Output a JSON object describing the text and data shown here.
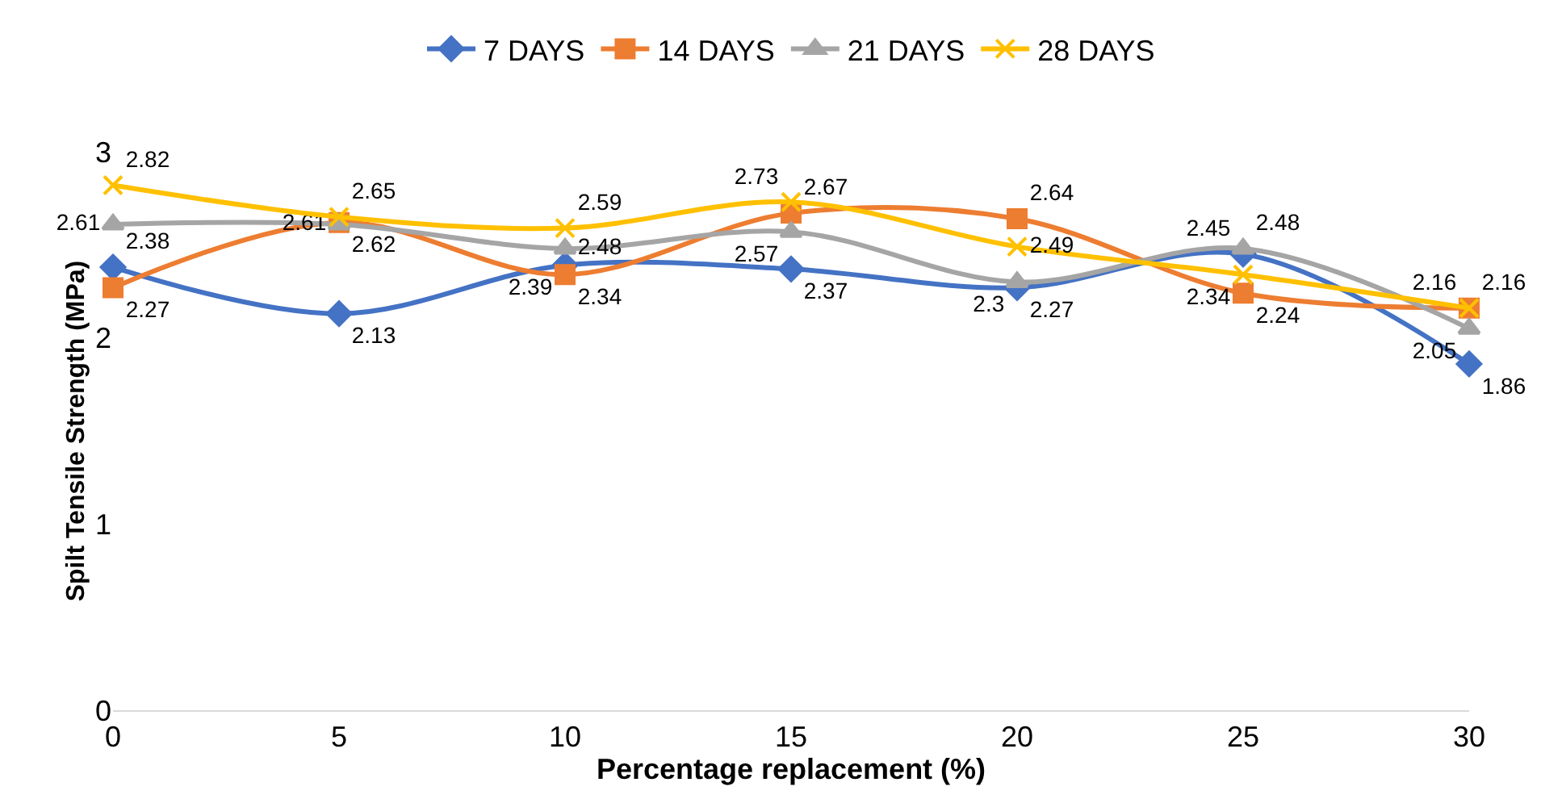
{
  "chart_data": {
    "type": "line",
    "xlabel": "Percentage replacement (%)",
    "ylabel": "Spilt Tensile Strength (MPa)",
    "x": [
      0,
      5,
      10,
      15,
      20,
      25,
      30
    ],
    "series": [
      {
        "name": "7 DAYS",
        "color": "#4472c4",
        "marker": "diamond",
        "values": [
          2.38,
          2.13,
          2.39,
          2.37,
          2.27,
          2.45,
          1.86
        ]
      },
      {
        "name": "14 DAYS",
        "color": "#ed7d31",
        "marker": "square",
        "values": [
          2.27,
          2.62,
          2.34,
          2.67,
          2.64,
          2.24,
          2.16
        ]
      },
      {
        "name": "21 DAYS",
        "color": "#a5a5a5",
        "marker": "triangle",
        "values": [
          2.61,
          2.61,
          2.48,
          2.57,
          2.3,
          2.48,
          2.05
        ]
      },
      {
        "name": "28 DAYS",
        "color": "#ffc000",
        "marker": "cross",
        "values": [
          2.82,
          2.65,
          2.59,
          2.73,
          2.49,
          2.34,
          2.16
        ]
      }
    ],
    "xlim": [
      0,
      30
    ],
    "xticks": [
      0,
      5,
      10,
      15,
      20,
      25,
      30
    ],
    "ylim": [
      0,
      3
    ],
    "yticks": [
      0,
      1,
      2,
      3
    ],
    "data_labels": true,
    "legend": "top"
  }
}
